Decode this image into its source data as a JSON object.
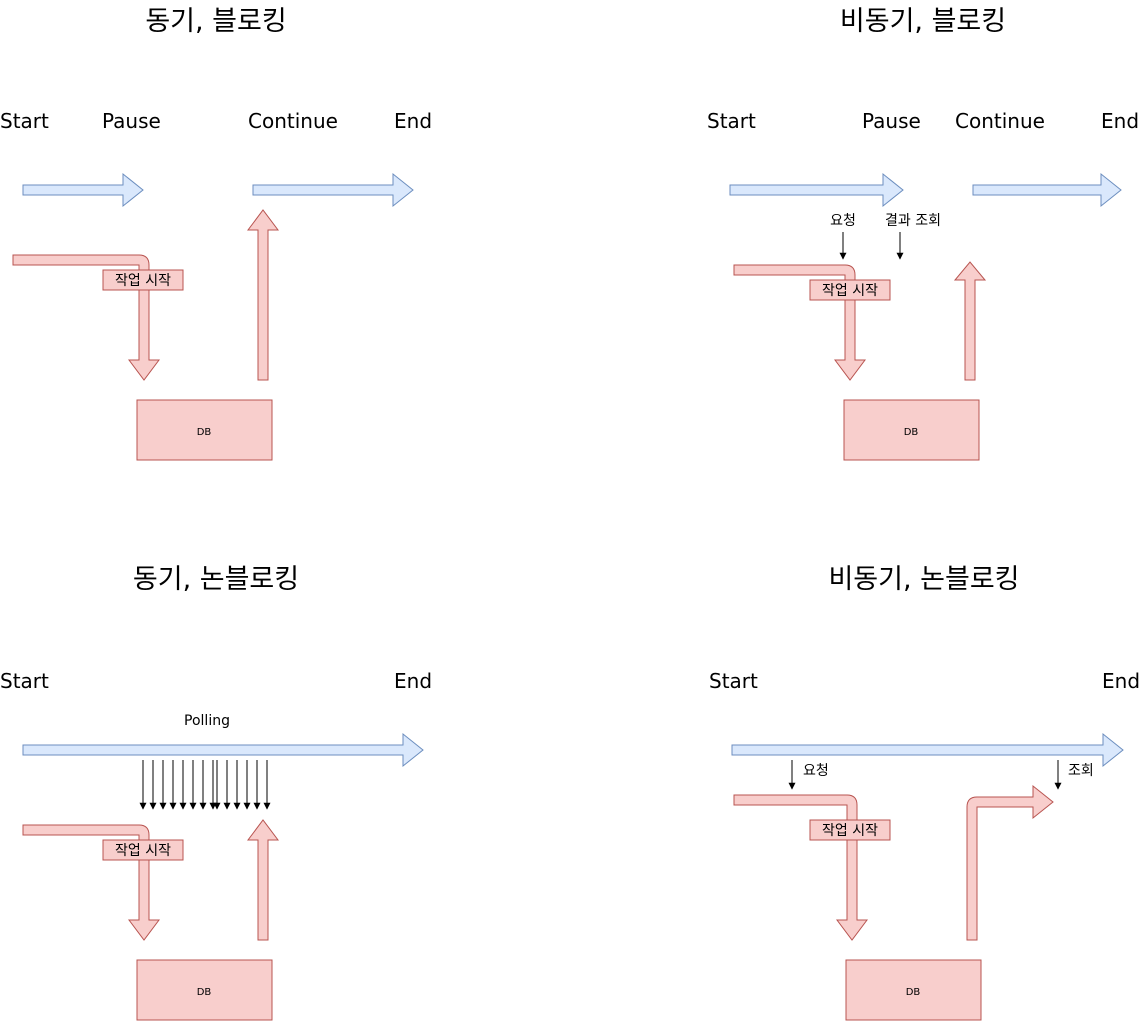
{
  "panels": [
    {
      "title": "동기, 블로킹",
      "labels": {
        "start": "Start",
        "pause": "Pause",
        "continue": "Continue",
        "end": "End"
      },
      "task_label": "작업 시작",
      "db_label": "DB"
    },
    {
      "title": "비동기, 블로킹",
      "labels": {
        "start": "Start",
        "pause": "Pause",
        "continue": "Continue",
        "end": "End"
      },
      "request_label": "요청",
      "result_label": "결과 조회",
      "task_label": "작업 시작",
      "db_label": "DB"
    },
    {
      "title": "동기, 논블로킹",
      "labels": {
        "start": "Start",
        "end": "End"
      },
      "polling_label": "Polling",
      "task_label": "작업 시작",
      "db_label": "DB"
    },
    {
      "title": "비동기, 논블로킹",
      "labels": {
        "start": "Start",
        "end": "End"
      },
      "request_label": "요청",
      "lookup_label": "조회",
      "task_label": "작업 시작",
      "db_label": "DB"
    }
  ],
  "colors": {
    "flow_fill": "#dae8fc",
    "flow_stroke": "#6c8ebf",
    "task_fill": "#f8cecc",
    "task_stroke": "#b85450"
  }
}
